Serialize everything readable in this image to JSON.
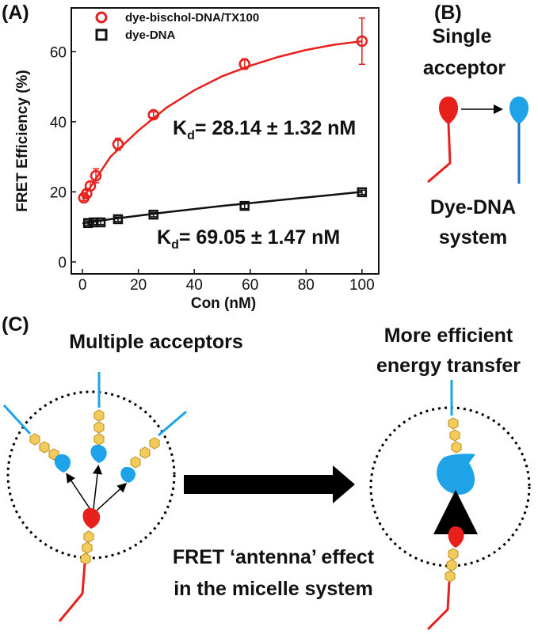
{
  "chart_data": {
    "type": "scatter",
    "panel": "(A)",
    "y_label": "FRET Efficiency (%)",
    "x_label": "Con (nM)",
    "xlim": [
      -4,
      106
    ],
    "ylim": [
      -3.4,
      72.5
    ],
    "xticks": [
      0,
      20,
      40,
      60,
      80,
      100
    ],
    "yticks": [
      0,
      20,
      40,
      60
    ],
    "legend": "upper left",
    "series": [
      {
        "name": "dye-bischol-DNA/TX100",
        "color": "#e8201c",
        "marker": "circle",
        "x": [
          0.5,
          1.5,
          2.8,
          4.8,
          12.7,
          25.4,
          58,
          100
        ],
        "values": [
          18.3,
          19.5,
          21.7,
          24.6,
          33.6,
          42,
          56.5,
          63
        ],
        "errors": [
          0.8,
          1,
          1.2,
          2,
          1.7,
          0.8,
          1.5,
          6.6
        ]
      },
      {
        "name": "dye-DNA",
        "color": "#111111",
        "marker": "square",
        "x": [
          2,
          4,
          6.5,
          12.7,
          25.4,
          58,
          100
        ],
        "values": [
          11.1,
          11.3,
          11.3,
          12.2,
          13.5,
          16,
          19.9
        ],
        "errors": [
          0.6,
          0.6,
          0.6,
          0.6,
          0.6,
          0.8,
          0.6
        ]
      }
    ],
    "fits": [
      {
        "color": "#e8201c",
        "x": [
          0,
          10,
          20,
          30,
          40,
          50,
          60,
          70,
          80,
          90,
          100
        ],
        "values": [
          18,
          30,
          37.5,
          44,
          49,
          53,
          56,
          58.5,
          60.5,
          62,
          63
        ]
      },
      {
        "color": "#111111",
        "x": [
          0,
          10,
          20,
          30,
          40,
          50,
          60,
          70,
          80,
          90,
          100
        ],
        "values": [
          11,
          12.2,
          13.2,
          14.2,
          15.1,
          16,
          16.8,
          17.6,
          18.4,
          19.2,
          20
        ]
      }
    ],
    "annotations": [
      {
        "prefix": "K",
        "sub": "d",
        "text": "= 28.14 ± 1.32 nM"
      },
      {
        "prefix": "K",
        "sub": "d",
        "text": "= 69.05 ± 1.47 nM"
      }
    ]
  },
  "panel_b": {
    "label": "(B)",
    "title_lines": [
      "Single",
      "acceptor"
    ],
    "caption_lines": [
      "Dye-DNA",
      "system"
    ]
  },
  "panel_c": {
    "label": "(C)",
    "left_title": "Multiple acceptors",
    "right_title_lines": [
      "More efficient",
      "energy transfer"
    ],
    "caption_lines": [
      "FRET ‘antenna’ effect",
      "in the micelle system"
    ]
  }
}
